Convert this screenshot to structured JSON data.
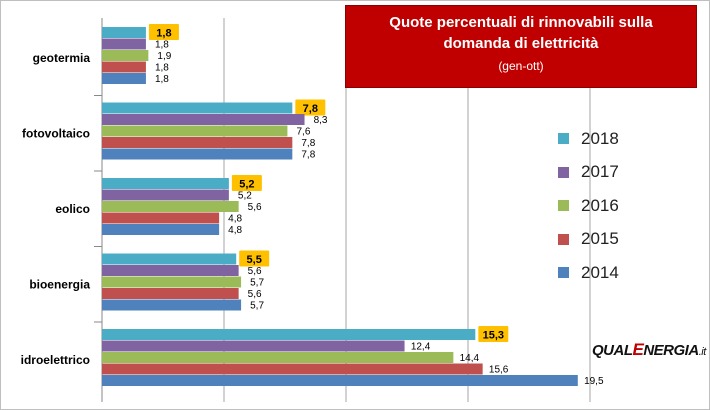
{
  "chart_data": {
    "type": "bar",
    "orientation": "horizontal",
    "title": "Quote percentuali di rinnovabili sulla domanda di elettricità",
    "subtitle": "(gen-ott)",
    "categories": [
      "geotermia",
      "fotovoltaico",
      "eolico",
      "bioenergia",
      "idroelettrico"
    ],
    "series": [
      {
        "name": "2018",
        "color": "#4bacc6",
        "values": [
          1.8,
          7.8,
          5.2,
          5.5,
          15.3
        ],
        "labels": [
          "1,8",
          "7,8",
          "5,2",
          "5,5",
          "15,3"
        ],
        "highlight": true
      },
      {
        "name": "2017",
        "color": "#8064a2",
        "values": [
          1.8,
          8.3,
          5.2,
          5.6,
          12.4
        ],
        "labels": [
          "1,8",
          "8,3",
          "5,2",
          "5,6",
          "12,4"
        ]
      },
      {
        "name": "2016",
        "color": "#9bbb59",
        "values": [
          1.9,
          7.6,
          5.6,
          5.7,
          14.4
        ],
        "labels": [
          "1,9",
          "7,6",
          "5,6",
          "5,7",
          "14,4"
        ]
      },
      {
        "name": "2015",
        "color": "#c0504d",
        "values": [
          1.8,
          7.8,
          4.8,
          5.6,
          15.6
        ],
        "labels": [
          "1,8",
          "7,8",
          "4,8",
          "5,6",
          "15,6"
        ]
      },
      {
        "name": "2014",
        "color": "#4f81bd",
        "values": [
          1.8,
          7.8,
          4.8,
          5.7,
          19.5
        ],
        "labels": [
          "1,8",
          "7,8",
          "4,8",
          "5,7",
          "19,5"
        ]
      }
    ],
    "xlim": [
      0,
      20
    ],
    "grid": true,
    "legend_position": "right",
    "highlight_color": "#ffc000"
  },
  "brand": {
    "part1": "QUAL",
    "part2": "E",
    "part3": "NERGIA",
    "part4": ".it"
  }
}
